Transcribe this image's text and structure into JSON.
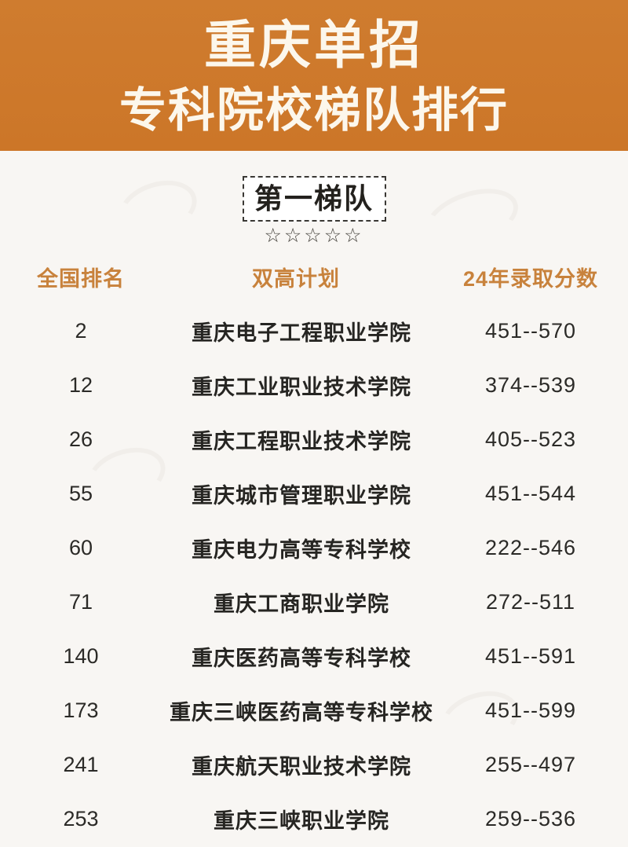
{
  "header": {
    "title_line1": "重庆单招",
    "title_line2": "专科院校梯队排行"
  },
  "tier": {
    "label": "第一梯队",
    "stars": "☆☆☆☆☆"
  },
  "table": {
    "columns": [
      "全国排名",
      "双高计划",
      "24年录取分数"
    ],
    "rows": [
      {
        "rank": "2",
        "school": "重庆电子工程职业学院",
        "score": "451--570"
      },
      {
        "rank": "12",
        "school": "重庆工业职业技术学院",
        "score": "374--539"
      },
      {
        "rank": "26",
        "school": "重庆工程职业技术学院",
        "score": "405--523"
      },
      {
        "rank": "55",
        "school": "重庆城市管理职业学院",
        "score": "451--544"
      },
      {
        "rank": "60",
        "school": "重庆电力高等专科学校",
        "score": "222--546"
      },
      {
        "rank": "71",
        "school": "重庆工商职业学院",
        "score": "272--511"
      },
      {
        "rank": "140",
        "school": "重庆医药高等专科学校",
        "score": "451--591"
      },
      {
        "rank": "173",
        "school": "重庆三峡医药高等专科学校",
        "score": "451--599"
      },
      {
        "rank": "241",
        "school": "重庆航天职业技术学院",
        "score": "255--497"
      },
      {
        "rank": "253",
        "school": "重庆三峡职业学院",
        "score": "259--536"
      }
    ]
  },
  "colors": {
    "header_bg": "#cd7a2e",
    "header_text": "#fcf7ec",
    "accent_text": "#c8823c",
    "body_bg": "#f8f6f3",
    "row_text": "#2b2a27"
  }
}
